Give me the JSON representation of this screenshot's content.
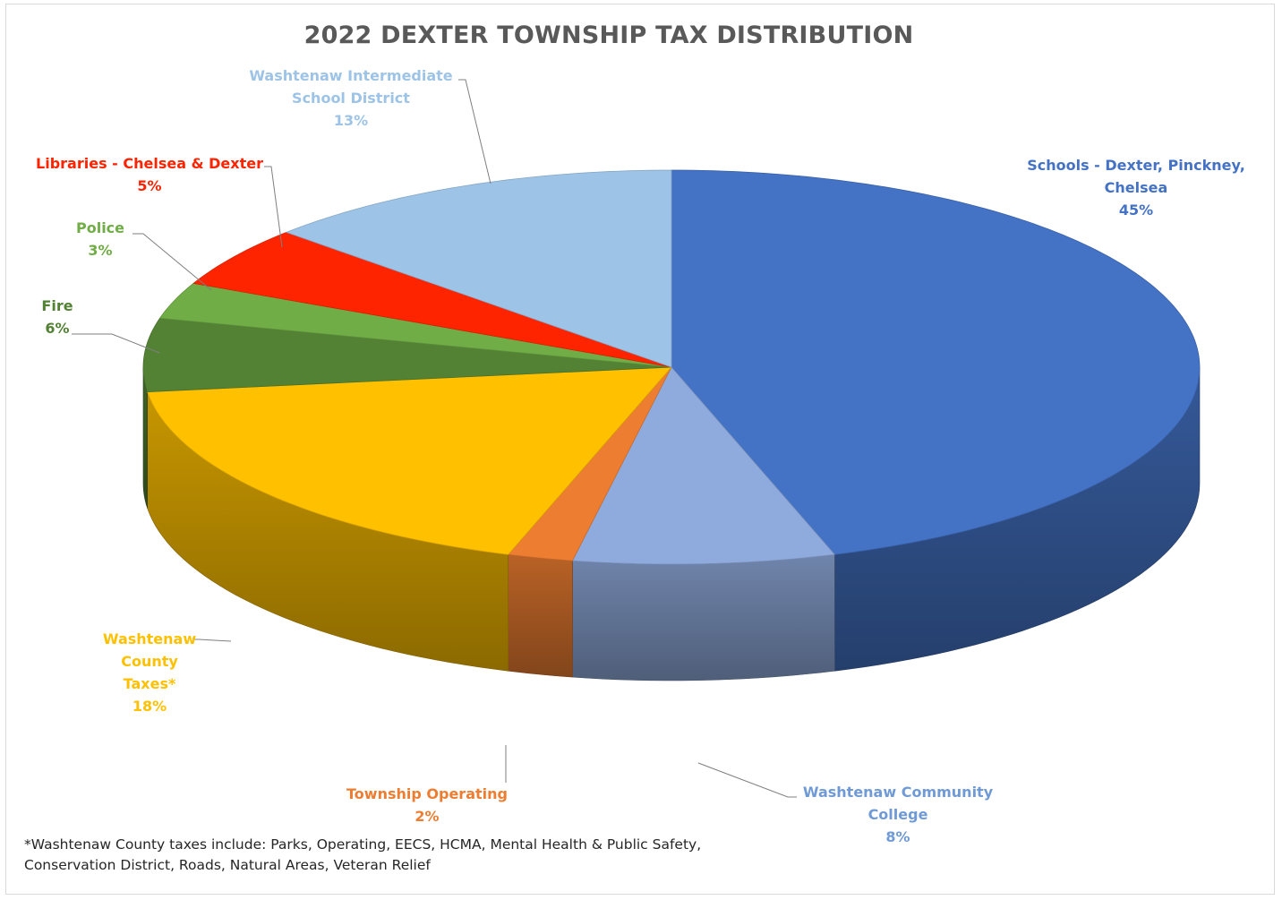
{
  "chart_data": {
    "type": "pie",
    "title": "2022 DEXTER TOWNSHIP TAX DISTRIBUTION",
    "slices": [
      {
        "key": "schools",
        "label": "Schools - Dexter, Pinckney, Chelsea",
        "lines": [
          "Schools - Dexter, Pinckney,",
          "Chelsea"
        ],
        "pct_label": "45%",
        "value": 45,
        "color": "#4472c4"
      },
      {
        "key": "wcc",
        "label": "Washtenaw Community College",
        "lines": [
          "Washtenaw Community",
          "College"
        ],
        "pct_label": "8%",
        "value": 8,
        "color": "#8faadc"
      },
      {
        "key": "township",
        "label": "Township Operating",
        "lines": [
          "Township Operating"
        ],
        "pct_label": "2%",
        "value": 2,
        "color": "#ed7d31"
      },
      {
        "key": "county",
        "label": "Washtenaw County Taxes*",
        "lines": [
          "Washtenaw",
          "County",
          "Taxes*"
        ],
        "pct_label": "18%",
        "value": 18,
        "color": "#ffc000"
      },
      {
        "key": "fire",
        "label": "Fire",
        "lines": [
          "Fire"
        ],
        "pct_label": "6%",
        "value": 6,
        "color": "#548235"
      },
      {
        "key": "police",
        "label": "Police",
        "lines": [
          "Police"
        ],
        "pct_label": "3%",
        "value": 3,
        "color": "#70ad47"
      },
      {
        "key": "libraries",
        "label": "Libraries - Chelsea & Dexter",
        "lines": [
          "Libraries - Chelsea & Dexter"
        ],
        "pct_label": "5%",
        "value": 5,
        "color": "#ff2400"
      },
      {
        "key": "wisd",
        "label": "Washtenaw Intermediate School District",
        "lines": [
          "Washtenaw Intermediate",
          "School District"
        ],
        "pct_label": "13%",
        "value": 13,
        "color": "#9dc3e6"
      }
    ],
    "label_colors": {
      "schools": "#4472c4",
      "wcc": "#6f9ad6",
      "township": "#ed7d31",
      "county": "#ffc000",
      "fire": "#548235",
      "police": "#70ad47",
      "libraries": "#ff2400",
      "wisd": "#9dc3e6"
    },
    "footnote_lines": [
      "*Washtenaw County taxes include: Parks, Operating, EECS, HCMA, Mental Health & Public Safety,",
      "Conservation District, Roads, Natural Areas, Veteran Relief"
    ]
  }
}
